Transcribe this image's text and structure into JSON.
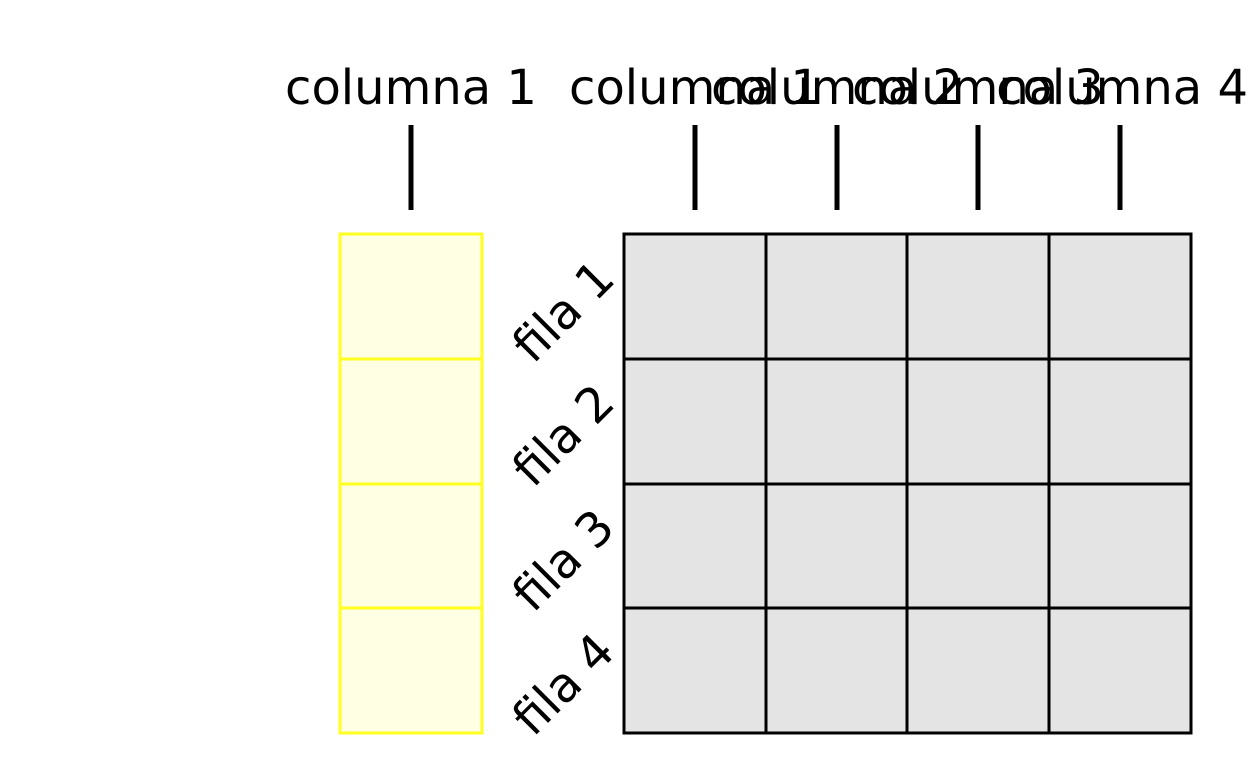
{
  "left_column": {
    "label": "columna 1",
    "rows": 4,
    "fill_color": "#ffffe3",
    "border_color": "#ffff22"
  },
  "grid": {
    "column_labels": [
      "columna 1",
      "columna 2",
      "columna 3",
      "columna 4"
    ],
    "row_labels": [
      "fila 1",
      "fila 2",
      "fila 3",
      "fila 4"
    ],
    "rows": 4,
    "columns": 4,
    "fill_color": "#e4e4e4",
    "border_color": "#000000"
  }
}
